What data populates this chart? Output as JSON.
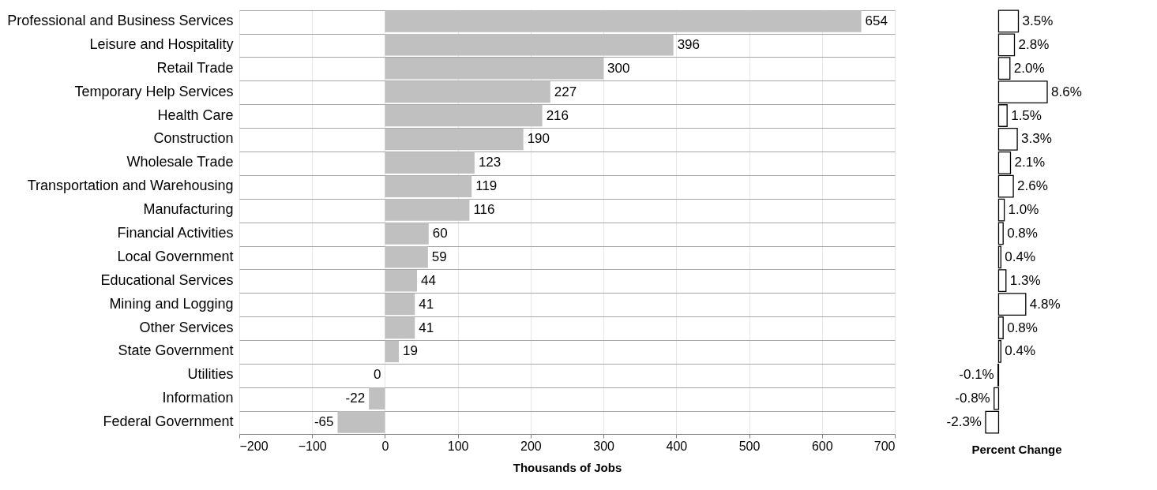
{
  "chart_data": [
    {
      "type": "bar",
      "orientation": "horizontal",
      "xlabel": "Thousands of Jobs",
      "categories": [
        "Professional and Business Services",
        "Leisure and Hospitality",
        "Retail Trade",
        "Temporary Help Services",
        "Health Care",
        "Construction",
        "Wholesale Trade",
        "Transportation and Warehousing",
        "Manufacturing",
        "Financial Activities",
        "Local Government",
        "Educational Services",
        "Mining and Logging",
        "Other Services",
        "State Government",
        "Utilities",
        "Information",
        "Federal Government"
      ],
      "values": [
        654,
        396,
        300,
        227,
        216,
        190,
        123,
        119,
        116,
        60,
        59,
        44,
        41,
        41,
        19,
        0,
        -22,
        -65
      ],
      "color": "#c0c0c0",
      "xlim": [
        -200,
        700
      ],
      "xticks": [
        -200,
        -100,
        0,
        100,
        200,
        300,
        400,
        500,
        600,
        700
      ],
      "grid": true,
      "data_labels": true
    },
    {
      "type": "bar",
      "orientation": "horizontal",
      "xlabel": "Percent Change",
      "categories": [
        null,
        null,
        null,
        null,
        null,
        null,
        null,
        null,
        null,
        null,
        null,
        null,
        null,
        null,
        null,
        null,
        null,
        null
      ],
      "values": [
        3.5,
        2.8,
        2.0,
        8.6,
        1.5,
        3.3,
        2.1,
        2.6,
        1.0,
        0.8,
        0.4,
        1.3,
        4.8,
        0.8,
        0.4,
        -0.1,
        -0.8,
        -2.3
      ],
      "value_labels": [
        "3.5%",
        "2.8%",
        "2.0%",
        "8.6%",
        "1.5%",
        "3.3%",
        "2.1%",
        "2.6%",
        "1.0%",
        "0.8%",
        "0.4%",
        "1.3%",
        "4.8%",
        "0.8%",
        "0.4%",
        "-0.1%",
        "-0.8%",
        "-2.3%"
      ],
      "color": "#ffffff"
    }
  ]
}
